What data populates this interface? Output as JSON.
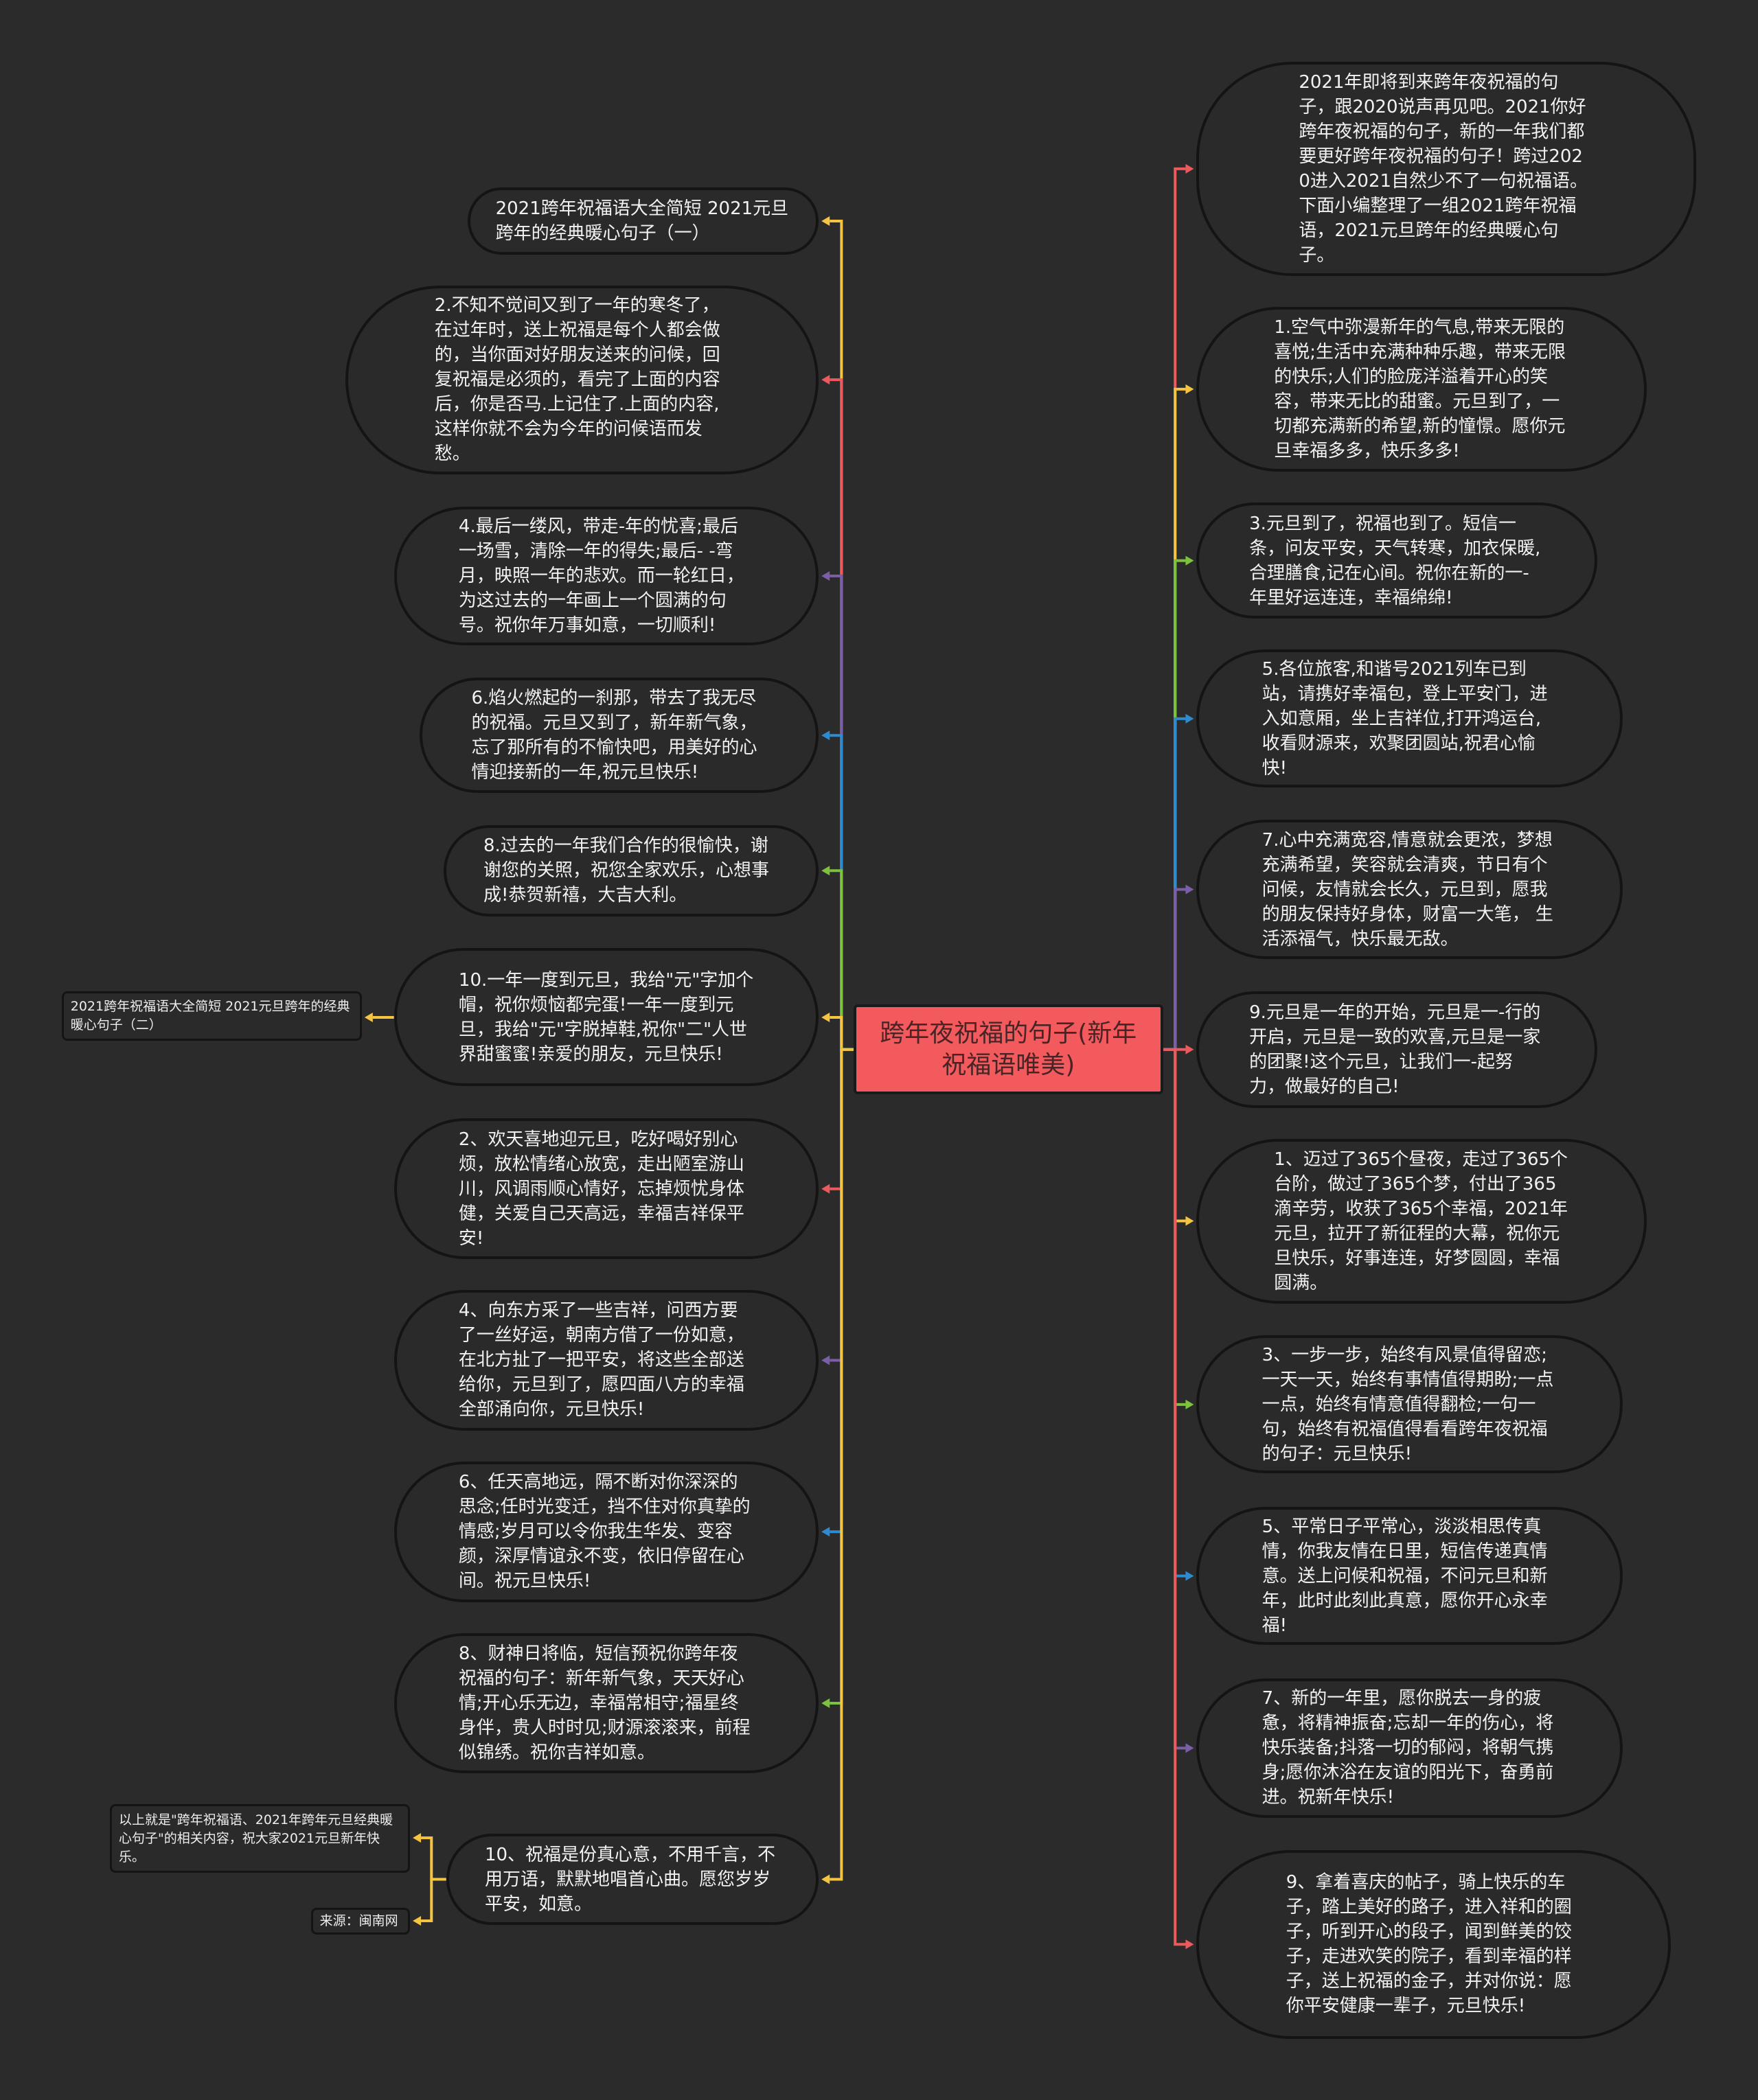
{
  "center": {
    "title": "跨年夜祝福的句子(新年祝福语唯美)"
  },
  "colors": {
    "background": "#2b2b2b",
    "center_fill": "#f25a5e",
    "yellow": "#f5c542",
    "red": "#ec5a5e",
    "purple": "#7b5ea8",
    "blue": "#2e8bd0",
    "green": "#7cc23e"
  },
  "left": [
    {
      "text": "2021跨年祝福语大全简短 2021元旦跨年的经典暖心句子（一）",
      "color": "yellow"
    },
    {
      "text": "2.不知不觉间又到了一年的寒冬了，在过年时，送上祝福是每个人都会做的，当你面对好朋友送来的问候，回复祝福是必须的，看完了上面的内容后，你是否马.上记住了.上面的内容,这样你就不会为今年的问候语而发愁。",
      "color": "red"
    },
    {
      "text": "4.最后一缕风，带走-年的忧喜;最后一场雪，清除一年的得失;最后- -弯月，映照一年的悲欢。而一轮红日，为这过去的一年画上一个圆满的句号。祝你年万事如意，一切顺利!",
      "color": "purple"
    },
    {
      "text": "6.焰火燃起的一刹那，带去了我无尽的祝福。元旦又到了，新年新气象，忘了那所有的不愉快吧，用美好的心情迎接新的一年,祝元旦快乐!",
      "color": "blue"
    },
    {
      "text": "8.过去的一年我们合作的很愉快，谢谢您的关照，祝您全家欢乐，心想事成!恭贺新禧，大吉大利。",
      "color": "green"
    },
    {
      "text": "10.一年一度到元旦，我给\"元\"字加个帽，祝你烦恼都完蛋!一年一度到元旦，我给\"元\"字脱掉鞋,祝你\"二\"人世界甜蜜蜜!亲爱的朋友，元旦快乐!",
      "color": "yellow"
    },
    {
      "text": "2、欢天喜地迎元旦，吃好喝好别心烦，放松情绪心放宽，走出陋室游山川，风调雨顺心情好，忘掉烦忧身体健，关爱自己天高远，幸福吉祥保平安!",
      "color": "red"
    },
    {
      "text": "4、向东方采了一些吉祥，问西方要了一丝好运，朝南方借了一份如意，在北方扯了一把平安，将这些全部送给你，元旦到了，愿四面八方的幸福全部涌向你，元旦快乐!",
      "color": "purple"
    },
    {
      "text": "6、任天高地远，隔不断对你深深的思念;任时光变迁，挡不住对你真挚的情感;岁月可以令你我生华发、变容颜，深厚情谊永不变，依旧停留在心间。祝元旦快乐!",
      "color": "blue"
    },
    {
      "text": "8、财神日将临，短信预祝你跨年夜祝福的句子：新年新气象，天天好心情;开心乐无边，幸福常相守;福星终身伴，贵人时时见;财源滚滚来，前程似锦绣。祝你吉祥如意。",
      "color": "green"
    },
    {
      "text": "10、祝福是份真心意，不用千言，不用万语，默默地唱首心曲。愿您岁岁平安，如意。",
      "color": "yellow"
    }
  ],
  "left_leaves": {
    "summary_two": "2021跨年祝福语大全简短 2021元旦跨年的经典暖心句子（二）",
    "closing": "以上就是\"跨年祝福语、2021年跨年元旦经典暖心句子\"的相关内容，祝大家2021元旦新年快乐。",
    "source": "来源：闽南网"
  },
  "right": [
    {
      "text": "2021年即将到来跨年夜祝福的句子，跟2020说声再见吧。2021你好跨年夜祝福的句子，新的一年我们都要更好跨年夜祝福的句子！跨过2020进入2021自然少不了一句祝福语。下面小编整理了一组2021跨年祝福语，2021元旦跨年的经典暖心句子。",
      "color": "red"
    },
    {
      "text": "1.空气中弥漫新年的气息,带来无限的喜悦;生活中充满种种乐趣，带来无限的快乐;人们的脸庞洋溢着开心的笑容，带来无比的甜蜜。元旦到了，一切都充满新的希望,新的憧憬。愿你元旦幸福多多，快乐多多!",
      "color": "yellow"
    },
    {
      "text": "3.元旦到了，祝福也到了。短信一条，问友平安，天气转寒，加衣保暖,合理膳食,记在心间。祝你在新的一-年里好运连连，幸福绵绵!",
      "color": "green"
    },
    {
      "text": "5.各位旅客,和谐号2021列车已到站，请携好幸福包，登上平安门，进入如意厢，坐上吉祥位,打开鸿运台,收看财源来，欢聚团圆站,祝君心愉快!",
      "color": "blue"
    },
    {
      "text": "7.心中充满宽容,情意就会更浓，梦想充满希望，笑容就会清爽，节日有个问候，友情就会长久，元旦到，愿我的朋友保持好身体，财富一大笔， 生活添福气，快乐最无敌。",
      "color": "purple"
    },
    {
      "text": "9.元旦是一年的开始，元旦是一-行的开启，元旦是一致的欢喜,元旦是一家的团聚!这个元旦，让我们一-起努力，做最好的自己!",
      "color": "red"
    },
    {
      "text": "1、迈过了365个昼夜，走过了365个台阶，做过了365个梦，付出了365滴辛劳，收获了365个幸福，2021年元旦，拉开了新征程的大幕，祝你元旦快乐，好事连连，好梦圆圆，幸福圆满。",
      "color": "yellow"
    },
    {
      "text": "3、一步一步，始终有风景值得留恋;一天一天，始终有事情值得期盼;一点一点，始终有情意值得翻检;一句一句，始终有祝福值得看看跨年夜祝福的句子：元旦快乐!",
      "color": "green"
    },
    {
      "text": "5、平常日子平常心，淡淡相思传真情，你我友情在日里，短信传递真情意。送上问候和祝福，不问元旦和新年，此时此刻此真意，愿你开心永幸福!",
      "color": "blue"
    },
    {
      "text": "7、新的一年里，愿你脱去一身的疲惫，将精神振奋;忘却一年的伤心，将快乐装备;抖落一切的郁闷，将朝气携身;愿你沐浴在友谊的阳光下，奋勇前进。祝新年快乐!",
      "color": "purple"
    },
    {
      "text": "9、拿着喜庆的帖子，骑上快乐的车子，踏上美好的路子，进入祥和的圈子，听到开心的段子，闻到鲜美的饺子，走进欢笑的院子，看到幸福的样子，送上祝福的金子，并对你说：愿你平安健康一辈子，元旦快乐!",
      "color": "red"
    }
  ]
}
